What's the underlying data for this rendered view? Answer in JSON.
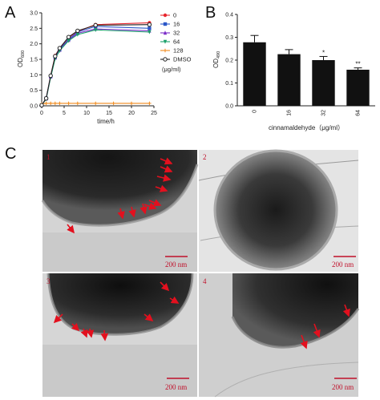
{
  "panels": {
    "a": "A",
    "b": "B",
    "c": "C"
  },
  "chart_data": [
    {
      "type": "line",
      "panel": "A",
      "xlabel": "time/h",
      "ylabel": "OD600",
      "ylabel_main": "OD",
      "ylabel_sub": "600",
      "xlim": [
        0,
        25
      ],
      "ylim": [
        0,
        3.0
      ],
      "xticks": [
        "0",
        "5",
        "10",
        "15",
        "20",
        "25"
      ],
      "yticks": [
        "0.0",
        "0.5",
        "1.0",
        "1.5",
        "2.0",
        "2.5",
        "3.0"
      ],
      "legend_unit": "(μg/ml)",
      "legend_position": "right",
      "grid": false,
      "series": [
        {
          "name": "0",
          "color": "#e8262e",
          "marker": "circle",
          "x": [
            0,
            1,
            2,
            3,
            4,
            6,
            8,
            12,
            24
          ],
          "y": [
            0.02,
            0.25,
            0.98,
            1.62,
            1.85,
            2.2,
            2.4,
            2.62,
            2.68
          ]
        },
        {
          "name": "16",
          "color": "#2b57c8",
          "marker": "square",
          "x": [
            0,
            1,
            2,
            3,
            4,
            6,
            8,
            12,
            24
          ],
          "y": [
            0.02,
            0.24,
            0.96,
            1.58,
            1.82,
            2.15,
            2.38,
            2.56,
            2.5
          ]
        },
        {
          "name": "32",
          "color": "#7a2bc8",
          "marker": "triangle-up",
          "x": [
            0,
            1,
            2,
            3,
            4,
            6,
            8,
            12,
            24
          ],
          "y": [
            0.02,
            0.23,
            0.94,
            1.55,
            1.8,
            2.12,
            2.34,
            2.48,
            2.42
          ]
        },
        {
          "name": "64",
          "color": "#1aa06a",
          "marker": "triangle-down",
          "x": [
            0,
            1,
            2,
            3,
            4,
            6,
            8,
            12,
            24
          ],
          "y": [
            0.02,
            0.22,
            0.92,
            1.52,
            1.78,
            2.1,
            2.3,
            2.45,
            2.38
          ]
        },
        {
          "name": "128",
          "color": "#f08a1c",
          "marker": "plus",
          "x": [
            0,
            1,
            2,
            3,
            4,
            6,
            8,
            12,
            16,
            20,
            24
          ],
          "y": [
            0.06,
            0.08,
            0.08,
            0.08,
            0.08,
            0.08,
            0.08,
            0.08,
            0.08,
            0.08,
            0.08
          ]
        },
        {
          "name": "DMSO",
          "color": "#222222",
          "marker": "circle-open",
          "x": [
            0,
            1,
            2,
            3,
            4,
            6,
            8,
            12,
            24
          ],
          "y": [
            0.02,
            0.24,
            0.97,
            1.6,
            1.86,
            2.22,
            2.42,
            2.6,
            2.62
          ]
        }
      ]
    },
    {
      "type": "bar",
      "panel": "B",
      "xlabel": "cinnamaldehyde（μg/ml）",
      "ylabel": "OD490",
      "ylabel_main": "OD",
      "ylabel_sub": "490",
      "categories": [
        "0",
        "16",
        "32",
        "64"
      ],
      "values": [
        0.278,
        0.226,
        0.2,
        0.158
      ],
      "errors": [
        0.03,
        0.02,
        0.016,
        0.008
      ],
      "significance": [
        "",
        "",
        "*",
        "**"
      ],
      "ylim": [
        0,
        0.4
      ],
      "yticks": [
        "0.0",
        "0.1",
        "0.2",
        "0.3",
        "0.4"
      ],
      "bar_color": "#111111",
      "grid": false
    }
  ],
  "micrographs": [
    {
      "number": "1",
      "scale": "200 nm"
    },
    {
      "number": "2",
      "scale": "200 nm"
    },
    {
      "number": "3",
      "scale": "200 nm"
    },
    {
      "number": "4",
      "scale": "200 nm"
    }
  ]
}
